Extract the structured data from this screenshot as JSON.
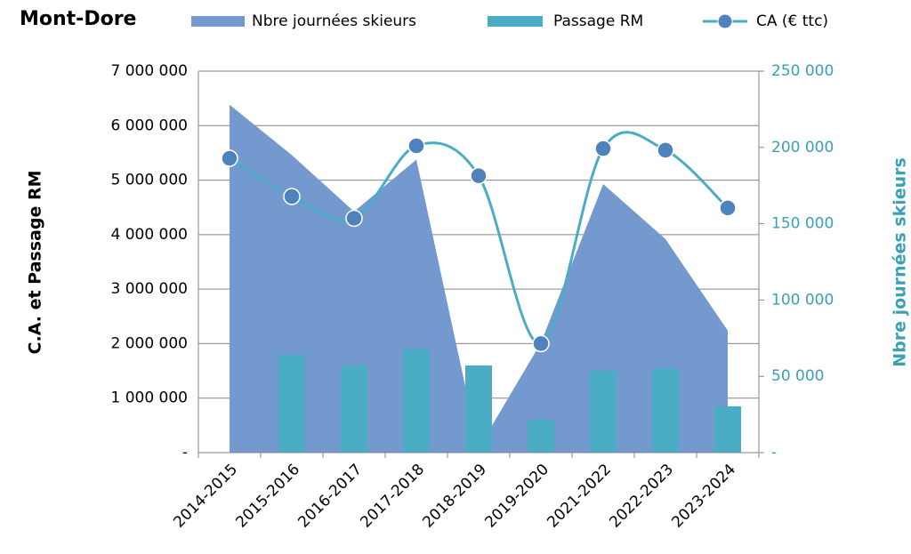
{
  "chart_data": {
    "type": "combo",
    "title": "Mont-Dore",
    "categories": [
      "2014-2015",
      "2015-2016",
      "2016-2017",
      "2017-2018",
      "2018-2019",
      "2019-2020",
      "2021-2022",
      "2022-2023",
      "2023-2024"
    ],
    "series": [
      {
        "name": "Nbre journées skieurs",
        "type": "area",
        "color": "#7399cf",
        "axis": "y2",
        "values": [
          228000,
          195000,
          158000,
          192000,
          3000,
          72000,
          176000,
          140000,
          80000
        ]
      },
      {
        "name": "Passage RM",
        "type": "bar",
        "color": "#4bacc6",
        "values": [
          null,
          1800000,
          1600000,
          1900000,
          1600000,
          600000,
          1500000,
          1550000,
          850000
        ]
      },
      {
        "name": "CA (€ ttc)",
        "type": "line",
        "color": "#4bacc6",
        "values": [
          5400000,
          4700000,
          4300000,
          5630000,
          5080000,
          2000000,
          5580000,
          5550000,
          4490000
        ]
      }
    ],
    "ylabel": "C.A. et Passage RM",
    "y2label": "Nbre journées skieurs",
    "ylim": [
      0,
      7000000
    ],
    "yticks": [
      {
        "value": 0,
        "label": "-"
      },
      {
        "value": 1000000,
        "label": "1 000 000"
      },
      {
        "value": 2000000,
        "label": "2 000 000"
      },
      {
        "value": 3000000,
        "label": "3 000 000"
      },
      {
        "value": 4000000,
        "label": "4 000 000"
      },
      {
        "value": 5000000,
        "label": "5 000 000"
      },
      {
        "value": 6000000,
        "label": "6 000 000"
      },
      {
        "value": 7000000,
        "label": "7 000 000"
      }
    ],
    "y2lim": [
      0,
      250000
    ],
    "y2ticks": [
      {
        "value": 0,
        "label": "-"
      },
      {
        "value": 50000,
        "label": "50 000"
      },
      {
        "value": 100000,
        "label": "100 000"
      },
      {
        "value": 150000,
        "label": "150 000"
      },
      {
        "value": 200000,
        "label": "200 000"
      },
      {
        "value": 250000,
        "label": "250 000"
      }
    ],
    "grid": true,
    "legend": "top"
  }
}
